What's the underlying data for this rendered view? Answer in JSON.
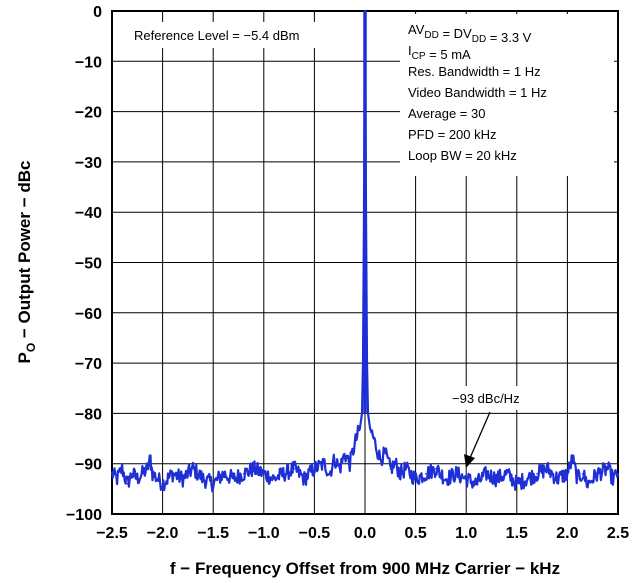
{
  "chart_data": {
    "type": "line",
    "title": "",
    "xlabel": "f − Frequency Offset from 900 MHz Carrier − kHz",
    "ylabel_main": "P",
    "ylabel_sub": "O",
    "ylabel_rest": " − Output Power − dBc",
    "xlim": [
      -2.5,
      2.5
    ],
    "ylim": [
      -100,
      0
    ],
    "x_ticks": [
      -2.5,
      -2.0,
      -1.5,
      -1.0,
      -0.5,
      0.0,
      0.5,
      1.0,
      1.5,
      2.0,
      2.5
    ],
    "x_tick_labels": [
      "−2.5",
      "−2.0",
      "−1.5",
      "−1.0",
      "−0.5",
      "0.0",
      "0.5",
      "1.0",
      "1.5",
      "2.0",
      "2.5"
    ],
    "y_ticks": [
      0,
      -10,
      -20,
      -30,
      -40,
      -50,
      -60,
      -70,
      -80,
      -90,
      -100
    ],
    "y_tick_labels": [
      "0",
      "−10",
      "−20",
      "−30",
      "−40",
      "−50",
      "−60",
      "−70",
      "−80",
      "−90",
      "−100"
    ],
    "grid": true,
    "series_color": "#1f2fd6",
    "series": [
      {
        "x": [
          -2.5,
          -2.45,
          -2.4,
          -2.35,
          -2.3,
          -2.25,
          -2.2,
          -2.15,
          -2.12,
          -2.1,
          -2.05,
          -2.0,
          -1.9,
          -1.8,
          -1.7,
          -1.6,
          -1.5,
          -1.4,
          -1.3,
          -1.2,
          -1.1,
          -1.0,
          -0.9,
          -0.8,
          -0.7,
          -0.6,
          -0.5,
          -0.4,
          -0.35,
          -0.3,
          -0.25,
          -0.2,
          -0.15,
          -0.1,
          -0.07,
          -0.05,
          -0.03,
          -0.02,
          -0.01,
          0.0,
          0.01,
          0.02,
          0.03,
          0.05,
          0.07,
          0.1,
          0.15,
          0.2,
          0.25,
          0.3,
          0.35,
          0.4,
          0.5,
          0.6,
          0.7,
          0.8,
          0.9,
          1.0,
          1.1,
          1.2,
          1.3,
          1.4,
          1.5,
          1.6,
          1.7,
          1.8,
          1.9,
          2.0,
          2.05,
          2.1,
          2.15,
          2.2,
          2.3,
          2.4,
          2.45,
          2.5
        ],
        "y": [
          -92,
          -93,
          -91,
          -94,
          -92,
          -93,
          -92,
          -91,
          -89,
          -92,
          -93,
          -94,
          -92,
          -93,
          -91,
          -93,
          -94,
          -92,
          -93,
          -92,
          -91,
          -92,
          -93,
          -92,
          -91,
          -93,
          -91,
          -90,
          -92,
          -89,
          -91,
          -88,
          -90,
          -86,
          -84,
          -83,
          -80,
          -70,
          -40,
          0,
          -40,
          -70,
          -80,
          -83,
          -84,
          -86,
          -89,
          -88,
          -91,
          -90,
          -92,
          -91,
          -93,
          -92,
          -91,
          -93,
          -92,
          -93,
          -94,
          -92,
          -93,
          -92,
          -94,
          -93,
          -92,
          -91,
          -93,
          -92,
          -89,
          -93,
          -92,
          -94,
          -92,
          -91,
          -93,
          -92
        ]
      }
    ],
    "annotations": {
      "reference_level": "Reference Level = −5.4 dBm",
      "noise_label": "−93 dBc/Hz",
      "settings": [
        {
          "pre": "AV",
          "sub1": "DD",
          "mid": " = DV",
          "sub2": "DD",
          "post": " = 3.3 V"
        },
        {
          "pre": "I",
          "sub1": "CP",
          "mid": " = 5 mA",
          "sub2": "",
          "post": ""
        },
        {
          "pre": "Res. Bandwidth = 1 Hz",
          "sub1": "",
          "mid": "",
          "sub2": "",
          "post": ""
        },
        {
          "pre": "Video Bandwidth = 1 Hz",
          "sub1": "",
          "mid": "",
          "sub2": "",
          "post": ""
        },
        {
          "pre": "Average = 30",
          "sub1": "",
          "mid": "",
          "sub2": "",
          "post": ""
        },
        {
          "pre": "PFD = 200 kHz",
          "sub1": "",
          "mid": "",
          "sub2": "",
          "post": ""
        },
        {
          "pre": "Loop BW = 20 kHz",
          "sub1": "",
          "mid": "",
          "sub2": "",
          "post": ""
        }
      ]
    }
  }
}
